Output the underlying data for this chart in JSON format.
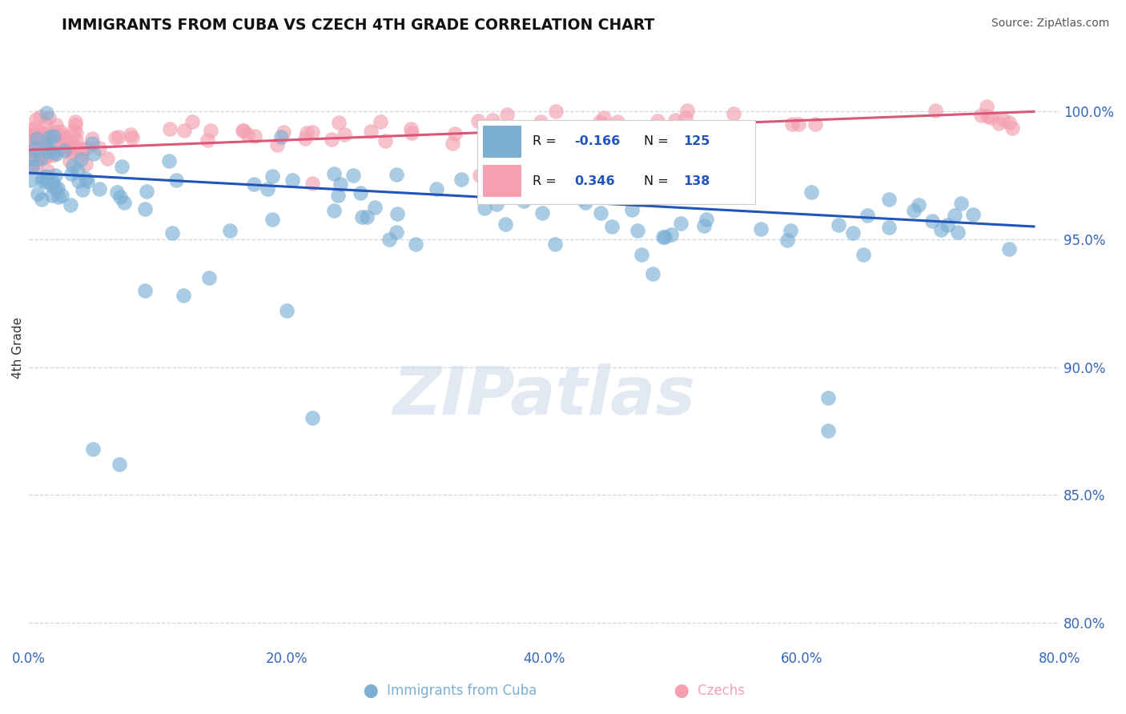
{
  "title": "IMMIGRANTS FROM CUBA VS CZECH 4TH GRADE CORRELATION CHART",
  "source_text": "Source: ZipAtlas.com",
  "ylabel_left": "4th Grade",
  "xaxis_tick_vals": [
    0.0,
    0.2,
    0.4,
    0.6,
    0.8
  ],
  "xaxis_tick_labels": [
    "0.0%",
    "20.0%",
    "40.0%",
    "60.0%",
    "80.0%"
  ],
  "yaxis_tick_vals": [
    1.0,
    0.95,
    0.9,
    0.85,
    0.8
  ],
  "yaxis_tick_labels": [
    "100.0%",
    "95.0%",
    "90.0%",
    "85.0%",
    "80.0%"
  ],
  "xlim": [
    0.0,
    0.8
  ],
  "ylim": [
    0.79,
    1.025
  ],
  "blue_color": "#7bafd4",
  "pink_color": "#f4a0b0",
  "blue_line_color": "#2255bb",
  "pink_line_color": "#dd5577",
  "legend_blue_R": "-0.166",
  "legend_blue_N": "125",
  "legend_pink_R": "0.346",
  "legend_pink_N": "138",
  "watermark": "ZIPatlas",
  "grid_color": "#c8d8e8",
  "title_color": "#111111",
  "source_color": "#555555",
  "tick_color": "#3366bb",
  "ylabel_color": "#333333"
}
